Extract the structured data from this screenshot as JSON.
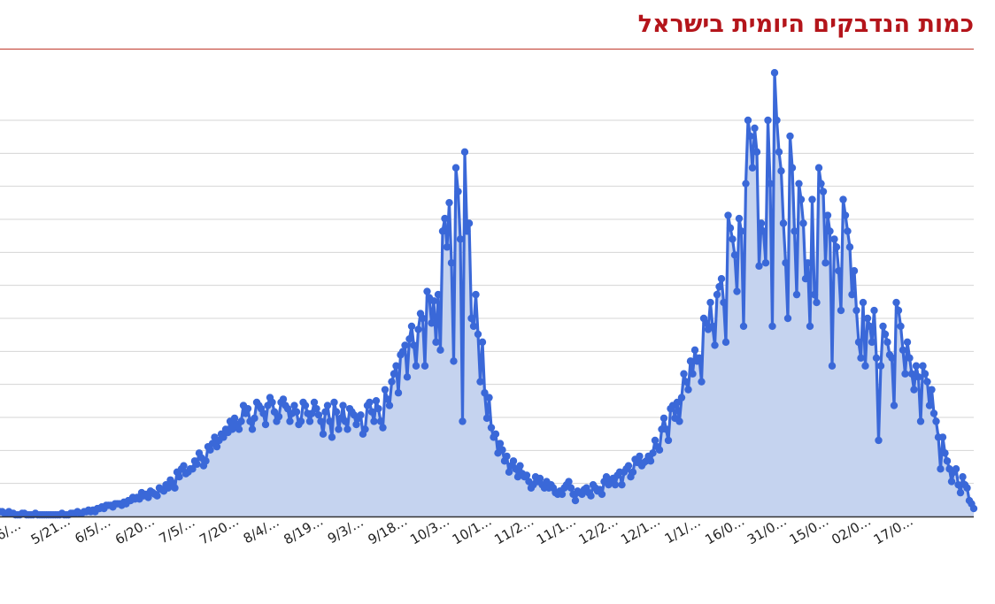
{
  "title": "כמות הנדבקים היומית בישראל",
  "colors": {
    "title": "#b4151b",
    "title_rule": "#c0392b",
    "line": "#3a68d8",
    "area": "#c5d3ef",
    "grid": "#d4d4d4",
    "axis": "#333333"
  },
  "chart_data": {
    "type": "area",
    "grid": true,
    "legend": "none",
    "y_tick_labels_visible": false,
    "x_tick_labels": [
      "6/...",
      "5/21...",
      "6/5/...",
      "6/20...",
      "7/5/...",
      "7/20...",
      "8/4/...",
      "8/19...",
      "9/3/...",
      "9/18...",
      "10/3...",
      "10/1...",
      "11/2...",
      "11/1...",
      "12/2...",
      "12/1...",
      "1/1/...",
      "16/0...",
      "31/0...",
      "15/0...",
      "02/0...",
      "17/0..."
    ],
    "series": [
      {
        "values": [
          3,
          3,
          2,
          2,
          3,
          2,
          2,
          1,
          1,
          1,
          2,
          2,
          1,
          1,
          1,
          1,
          2,
          1,
          1,
          1,
          1,
          1,
          1,
          1,
          1,
          1,
          1,
          1,
          2,
          1,
          1,
          1,
          2,
          2,
          2,
          3,
          2,
          2,
          3,
          3,
          4,
          3,
          4,
          3,
          5,
          5,
          6,
          5,
          7,
          7,
          7,
          6,
          8,
          8,
          8,
          7,
          9,
          8,
          10,
          10,
          12,
          11,
          12,
          11,
          15,
          13,
          14,
          12,
          16,
          15,
          14,
          13,
          18,
          17,
          16,
          20,
          18,
          23,
          21,
          18,
          28,
          25,
          30,
          32,
          27,
          28,
          30,
          30,
          35,
          33,
          40,
          37,
          32,
          35,
          44,
          42,
          46,
          50,
          44,
          48,
          52,
          50,
          55,
          53,
          60,
          55,
          62,
          58,
          55,
          60,
          70,
          65,
          68,
          60,
          55,
          62,
          72,
          70,
          68,
          65,
          58,
          70,
          75,
          72,
          66,
          60,
          63,
          72,
          74,
          70,
          68,
          60,
          65,
          70,
          66,
          58,
          60,
          72,
          70,
          65,
          60,
          65,
          72,
          68,
          64,
          60,
          52,
          66,
          70,
          60,
          50,
          72,
          66,
          55,
          62,
          70,
          60,
          55,
          68,
          66,
          64,
          58,
          62,
          64,
          52,
          55,
          70,
          72,
          66,
          60,
          73,
          68,
          60,
          56,
          80,
          74,
          70,
          85,
          90,
          95,
          78,
          102,
          104,
          108,
          88,
          112,
          120,
          108,
          95,
          118,
          128,
          125,
          95,
          142,
          138,
          122,
          136,
          110,
          140,
          105,
          180,
          188,
          170,
          198,
          160,
          98,
          220,
          205,
          175,
          60,
          230,
          180,
          185,
          125,
          120,
          140,
          115,
          85,
          110,
          78,
          62,
          75,
          56,
          50,
          52,
          40,
          46,
          42,
          35,
          38,
          28,
          32,
          35,
          30,
          25,
          32,
          27,
          25,
          26,
          22,
          18,
          20,
          25,
          22,
          24,
          20,
          18,
          22,
          18,
          20,
          18,
          15,
          14,
          16,
          14,
          18,
          20,
          22,
          18,
          14,
          10,
          16,
          15,
          14,
          17,
          18,
          15,
          13,
          20,
          18,
          16,
          17,
          14,
          22,
          25,
          20,
          22,
          24,
          20,
          26,
          28,
          20,
          28,
          30,
          32,
          25,
          28,
          36,
          34,
          38,
          32,
          34,
          35,
          38,
          35,
          40,
          48,
          44,
          42,
          55,
          62,
          55,
          48,
          68,
          70,
          62,
          72,
          60,
          75,
          90,
          85,
          80,
          98,
          90,
          105,
          98,
          100,
          85,
          125,
          122,
          118,
          135,
          120,
          108,
          140,
          145,
          150,
          135,
          110,
          190,
          182,
          175,
          165,
          142,
          188,
          180,
          120,
          210,
          250,
          240,
          220,
          245,
          230,
          158,
          185,
          180,
          160,
          250,
          210,
          120,
          280,
          250,
          230,
          218,
          185,
          160,
          125,
          240,
          220,
          180,
          140,
          210,
          200,
          185,
          150,
          160,
          120,
          200,
          140,
          135,
          220,
          210,
          205,
          160,
          190,
          180,
          95,
          175,
          170,
          155,
          130,
          200,
          190,
          180,
          170,
          140,
          155,
          130,
          110,
          100,
          135,
          95,
          125,
          120,
          110,
          130,
          100,
          48,
          95,
          120,
          115,
          110,
          102,
          100,
          70,
          135,
          130,
          120,
          105,
          90,
          110,
          100,
          90,
          80,
          95,
          88,
          60,
          95,
          90,
          85,
          70,
          80,
          65,
          60,
          50,
          30,
          50,
          40,
          35,
          30,
          22,
          28,
          30,
          20,
          15,
          25,
          20,
          18,
          10,
          8,
          5
        ]
      }
    ],
    "ylim": [
      0,
      250
    ]
  }
}
